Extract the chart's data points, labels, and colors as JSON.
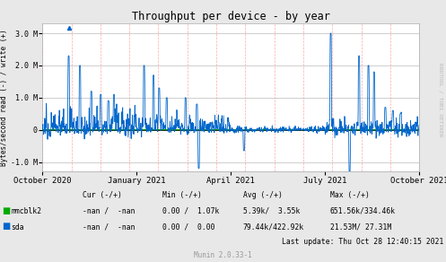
{
  "title": "Throughput per device - by year",
  "ylabel": "Bytes/second read (-) / write (+)",
  "right_label": "RRDTOOL / TOBI OETIKER",
  "bg_color": "#e8e8e8",
  "plot_bg_color": "#ffffff",
  "grid_color_major": "#bbbbbb",
  "grid_color_vline": "#ffaaaa",
  "line_color_sda": "#0066cc",
  "line_color_mmcblk2": "#00aa00",
  "zero_line_color": "#000000",
  "ylim": [
    -1300000,
    3300000
  ],
  "yticks": [
    -1000000,
    0,
    1000000,
    2000000,
    3000000
  ],
  "ytick_labels": [
    "-1.0 M",
    "0",
    "1.0 M",
    "2.0 M",
    "3.0 M"
  ],
  "xticklabels": [
    "October 2020",
    "January 2021",
    "April 2021",
    "July 2021",
    "October 2021"
  ],
  "header_cur": "Cur (-/+)",
  "header_min": "Min (-/+)",
  "header_avg": "Avg (-/+)",
  "header_max": "Max (-/+)",
  "mmcblk2_cur": "-nan /  -nan",
  "mmcblk2_min": "0.00 /  1.07k",
  "mmcblk2_avg": "5.39k/  3.55k",
  "mmcblk2_max": "651.56k/334.46k",
  "sda_cur": "-nan /  -nan",
  "sda_min": "0.00 /  0.00",
  "sda_avg": "79.44k/422.92k",
  "sda_max": "21.53M/ 27.31M",
  "footer_lastupdate": "Last update: Thu Oct 28 12:40:15 2021",
  "footer_munin": "Munin 2.0.33-1"
}
